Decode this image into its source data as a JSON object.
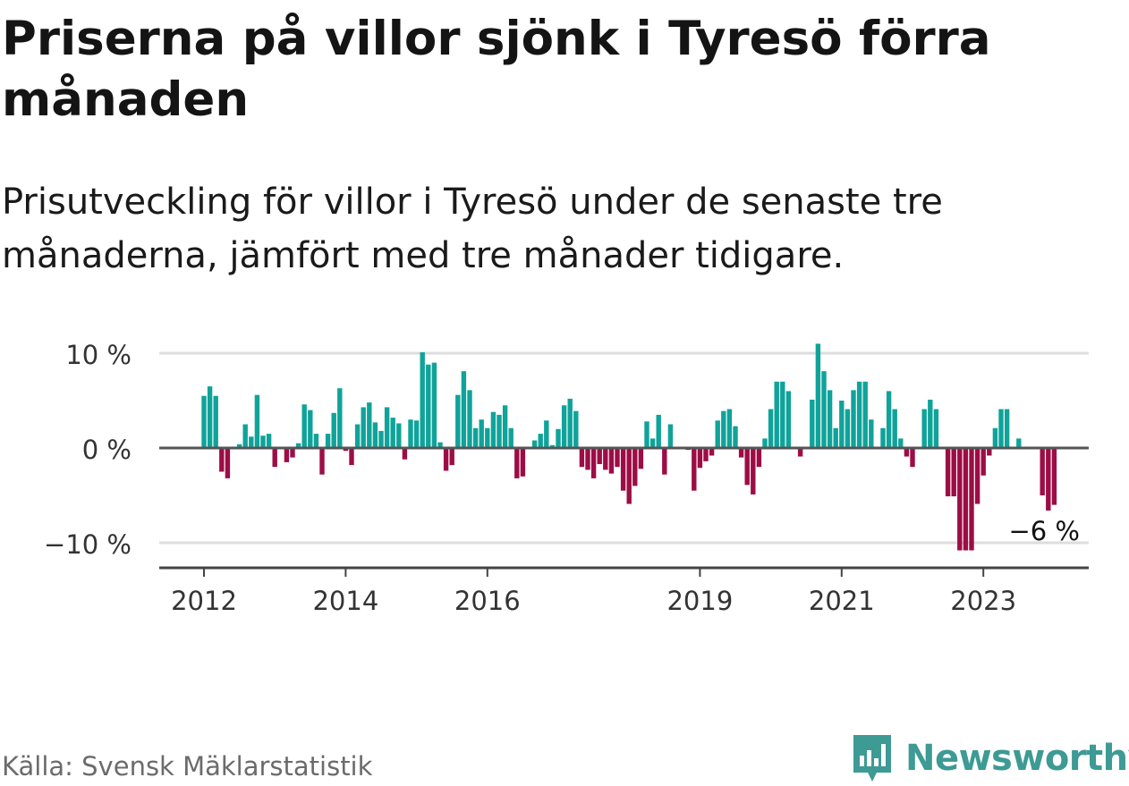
{
  "title": "Priserna på villor sjönk i Tyresö förra månaden",
  "subtitle": "Prisutveckling för villor i Tyresö under de senaste tre månaderna, jämfört med tre månader tidigare.",
  "source": "Källa: Svensk Mäklarstatistik",
  "brand": {
    "name": "Newsworthy",
    "color": "#3d9a94"
  },
  "colors": {
    "positive": "#0fa39a",
    "negative": "#9c0d46",
    "zero_line": "#555555",
    "grid": "#dddddd"
  },
  "chart_data": {
    "type": "bar",
    "title": "Priserna på villor sjönk i Tyresö förra månaden",
    "xlabel": "",
    "ylabel": "",
    "ylim": [
      -12.5,
      12
    ],
    "y_ticks": [
      {
        "value": 10,
        "label": "10 %"
      },
      {
        "value": 0,
        "label": "0 %"
      },
      {
        "value": -10,
        "label": "−10 %"
      }
    ],
    "x_ticks": [
      {
        "index": 0,
        "label": "2012"
      },
      {
        "index": 24,
        "label": "2014"
      },
      {
        "index": 48,
        "label": "2016"
      },
      {
        "index": 84,
        "label": "2019"
      },
      {
        "index": 108,
        "label": "2021"
      },
      {
        "index": 132,
        "label": "2023"
      }
    ],
    "start": "2012-01",
    "unit": "%",
    "values": [
      5.5,
      6.5,
      5.5,
      -2.5,
      -3.2,
      null,
      0.4,
      2.5,
      1.2,
      5.6,
      1.3,
      1.5,
      -2.0,
      null,
      -1.5,
      -1.0,
      0.5,
      4.6,
      4.0,
      1.5,
      -2.8,
      1.5,
      3.7,
      6.3,
      -0.3,
      -1.8,
      2.5,
      4.3,
      4.8,
      2.7,
      1.8,
      4.3,
      3.2,
      2.6,
      -1.2,
      3.0,
      2.9,
      10.1,
      8.8,
      9.0,
      0.6,
      -2.4,
      -1.8,
      5.6,
      8.1,
      6.1,
      2.1,
      3.0,
      2.1,
      3.8,
      3.5,
      4.5,
      2.1,
      -3.2,
      -3.0,
      null,
      0.8,
      1.5,
      2.9,
      0.3,
      2.0,
      4.5,
      5.2,
      3.9,
      -2.0,
      -2.3,
      -3.2,
      -1.7,
      -2.3,
      -2.7,
      -2.0,
      -4.5,
      -5.9,
      -4.0,
      -2.2,
      2.8,
      1.0,
      3.5,
      -2.8,
      2.5,
      null,
      null,
      -0.2,
      -4.5,
      -2.1,
      -1.4,
      -0.8,
      2.9,
      3.9,
      4.1,
      2.3,
      -1.0,
      -3.9,
      -4.9,
      -2.0,
      1.0,
      4.1,
      7.0,
      7.0,
      6.0,
      null,
      -0.9,
      null,
      5.1,
      11.0,
      8.1,
      6.1,
      2.1,
      5.0,
      4.1,
      6.1,
      7.0,
      7.0,
      3.0,
      null,
      2.1,
      6.0,
      4.1,
      1.0,
      -0.9,
      -2.0,
      null,
      4.1,
      5.1,
      4.1,
      null,
      -5.1,
      -5.1,
      -10.8,
      -10.8,
      -10.8,
      -5.9,
      -2.9,
      -0.8,
      2.1,
      4.1,
      4.1,
      null,
      1.0,
      null,
      null,
      null,
      -5.0,
      -6.6,
      -6.0
    ],
    "annotations": [
      {
        "index": 144,
        "text": "−6 %"
      }
    ]
  }
}
